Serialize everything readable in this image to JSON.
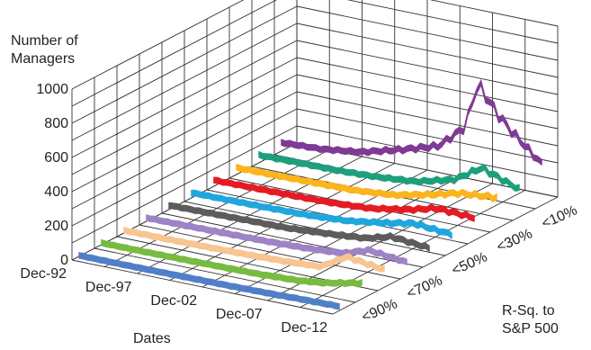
{
  "chart_data": {
    "type": "3d-ribbon-line",
    "z_axis": {
      "label_line1": "Number of",
      "label_line2": "Managers",
      "ticks": [
        "0",
        "200",
        "400",
        "600",
        "800",
        "1000"
      ],
      "range": [
        0,
        1000
      ]
    },
    "x_axis": {
      "label": "Dates",
      "ticks": [
        "Dec-92",
        "Dec-97",
        "Dec-02",
        "Dec-07",
        "Dec-12"
      ],
      "range": [
        1992.92,
        2012.92
      ]
    },
    "y_axis": {
      "label_line1": "R-Sq. to",
      "label_line2": "S&P 500",
      "ticks": [
        "<90%",
        "<70%",
        "<50%",
        "<30%",
        "<10%"
      ]
    },
    "grid": true,
    "series": [
      {
        "color": "#4f7fc8",
        "values": [
          [
            1993,
            25
          ],
          [
            1996,
            25
          ],
          [
            1999,
            26
          ],
          [
            2002,
            28
          ],
          [
            2005,
            30
          ],
          [
            2008,
            34
          ],
          [
            2010,
            38
          ],
          [
            2012.9,
            42
          ]
        ]
      },
      {
        "color": "#77bb41",
        "values": [
          [
            1993,
            30
          ],
          [
            1996,
            30
          ],
          [
            1999,
            32
          ],
          [
            2002,
            35
          ],
          [
            2005,
            38
          ],
          [
            2008,
            48
          ],
          [
            2010,
            65
          ],
          [
            2012.9,
            110
          ]
        ]
      },
      {
        "color": "#f8c490",
        "values": [
          [
            1993,
            35
          ],
          [
            1996,
            36
          ],
          [
            1999,
            38
          ],
          [
            2002,
            42
          ],
          [
            2005,
            48
          ],
          [
            2008,
            60
          ],
          [
            2010,
            150
          ],
          [
            2012.9,
            120
          ]
        ]
      },
      {
        "color": "#9e83c5",
        "values": [
          [
            1993,
            40
          ],
          [
            1996,
            42
          ],
          [
            1999,
            45
          ],
          [
            2002,
            48
          ],
          [
            2005,
            55
          ],
          [
            2008,
            70
          ],
          [
            2010,
            120
          ],
          [
            2012.9,
            95
          ]
        ]
      },
      {
        "color": "#5c5c5c",
        "values": [
          [
            1993,
            45
          ],
          [
            1996,
            48
          ],
          [
            1999,
            52
          ],
          [
            2002,
            55
          ],
          [
            2005,
            70
          ],
          [
            2008,
            90
          ],
          [
            2010,
            130
          ],
          [
            2012.9,
            110
          ]
        ]
      },
      {
        "color": "#1fa7dd",
        "values": [
          [
            1993,
            50
          ],
          [
            1996,
            52
          ],
          [
            1999,
            55
          ],
          [
            2002,
            60
          ],
          [
            2005,
            75
          ],
          [
            2008,
            110
          ],
          [
            2010,
            140
          ],
          [
            2012.9,
            120
          ]
        ]
      },
      {
        "color": "#e51b24",
        "values": [
          [
            1993,
            55
          ],
          [
            1996,
            58
          ],
          [
            1999,
            60
          ],
          [
            2002,
            65
          ],
          [
            2005,
            80
          ],
          [
            2008,
            120
          ],
          [
            2010,
            160
          ],
          [
            2012.9,
            150
          ]
        ]
      },
      {
        "color": "#fbb41c",
        "values": [
          [
            1993,
            60
          ],
          [
            1996,
            62
          ],
          [
            1999,
            66
          ],
          [
            2002,
            70
          ],
          [
            2005,
            90
          ],
          [
            2008,
            140
          ],
          [
            2010,
            180
          ],
          [
            2012.9,
            200
          ]
        ]
      },
      {
        "color": "#1d9f7c",
        "values": [
          [
            1993,
            65
          ],
          [
            1996,
            68
          ],
          [
            1999,
            70
          ],
          [
            2002,
            80
          ],
          [
            2005,
            100
          ],
          [
            2008,
            160
          ],
          [
            2010,
            260
          ],
          [
            2012.9,
            180
          ]
        ]
      },
      {
        "color": "#7e3a96",
        "values": [
          [
            1993,
            70
          ],
          [
            1996,
            80
          ],
          [
            1999,
            110
          ],
          [
            2002,
            170
          ],
          [
            2005,
            240
          ],
          [
            2007,
            380
          ],
          [
            2008,
            650
          ],
          [
            2009.5,
            500
          ],
          [
            2010.5,
            420
          ],
          [
            2012.9,
            260
          ]
        ]
      }
    ]
  }
}
